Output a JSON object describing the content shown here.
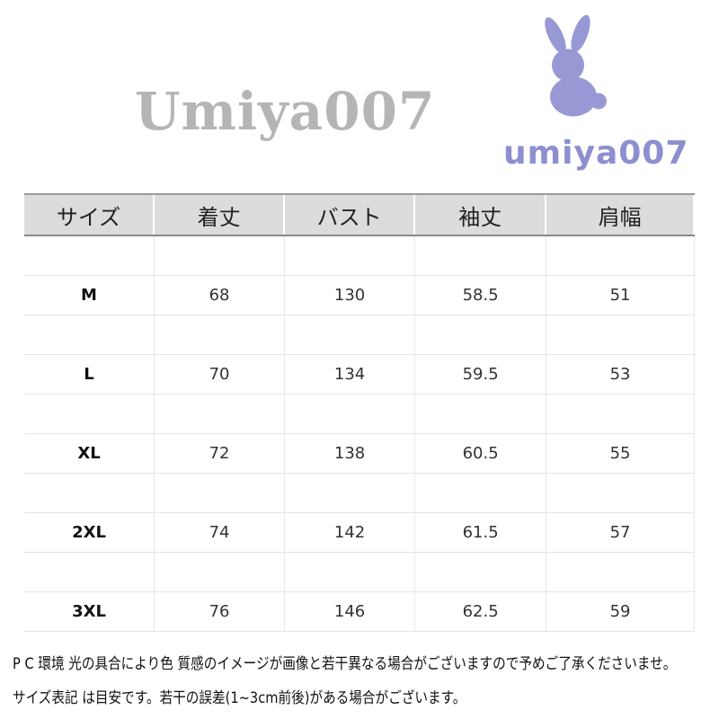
{
  "table": {
    "headers": [
      "サイズ",
      "着丈",
      "バスト",
      "袖丈",
      "肩幅"
    ],
    "rows": [
      [
        "M",
        "68",
        "130",
        "58.5",
        "51"
      ],
      [
        "L",
        "70",
        "134",
        "59.5",
        "53"
      ],
      [
        "XL",
        "72",
        "138",
        "60.5",
        "55"
      ],
      [
        "2XL",
        "74",
        "142",
        "61.5",
        "57"
      ],
      [
        "3XL",
        "76",
        "146",
        "62.5",
        "59"
      ]
    ]
  },
  "watermark": "Umiya007",
  "notes": [
    "P C 環境 光の具合により色 質感のイメージが画像と若干異なる場合がございますので予めご了承くださいませ。",
    "サイズ表記 は目安です。若干の誤差(1~3cm前後)がある場合がございます。"
  ],
  "logo": {
    "text": "umiya007",
    "icon": "rabbit-icon",
    "color": "#8d8fd0"
  }
}
